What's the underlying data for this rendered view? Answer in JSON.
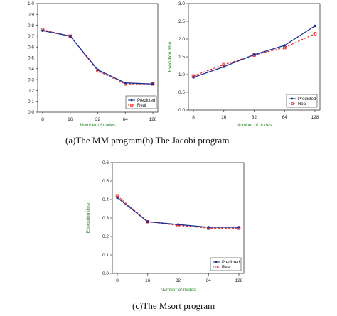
{
  "captions": {
    "ab": "(a)The MM program(b) The Jacobi program",
    "c": "(c)The Msort program"
  },
  "colors": {
    "predicted": "#1f2f8f",
    "real": "#e02020",
    "axis_title": "#2a8a2a",
    "frame": "#333333"
  },
  "chart_data": [
    {
      "id": "mm",
      "type": "line",
      "title": "",
      "xlabel": "Number of nodes",
      "ylabel": "",
      "x": [
        "8",
        "16",
        "32",
        "64",
        "128"
      ],
      "ylim": [
        0,
        1.0
      ],
      "yticks": [
        "0.0",
        "0.1",
        "0.2",
        "0.3",
        "0.4",
        "0.5",
        "0.6",
        "0.7",
        "0.8",
        "0.9",
        "1.0"
      ],
      "legend_position": "bottom-right",
      "grid": false,
      "series": [
        {
          "name": "Predicted",
          "values": [
            0.75,
            0.7,
            0.39,
            0.27,
            0.26
          ],
          "style": "solid",
          "marker": "circle"
        },
        {
          "name": "Real",
          "values": [
            0.76,
            0.7,
            0.38,
            0.26,
            0.26
          ],
          "style": "dashed",
          "marker": "square"
        }
      ]
    },
    {
      "id": "jacobi",
      "type": "line",
      "title": "",
      "xlabel": "Number of nodes",
      "ylabel": "Execution time",
      "x": [
        "8",
        "16",
        "32",
        "64",
        "128"
      ],
      "ylim": [
        0,
        3.0
      ],
      "yticks": [
        "0.0",
        "0.5",
        "1.0",
        "1.5",
        "2.0",
        "2.5",
        "3.0"
      ],
      "legend_position": "bottom-right",
      "grid": false,
      "series": [
        {
          "name": "Predicted",
          "values": [
            0.92,
            1.22,
            1.56,
            1.82,
            2.37
          ],
          "style": "solid",
          "marker": "circle"
        },
        {
          "name": "Real",
          "values": [
            0.96,
            1.28,
            1.55,
            1.76,
            2.15
          ],
          "style": "dashed",
          "marker": "square"
        }
      ]
    },
    {
      "id": "msort",
      "type": "line",
      "title": "",
      "xlabel": "Number of nodes",
      "ylabel": "Execution time",
      "x": [
        "8",
        "16",
        "32",
        "64",
        "128"
      ],
      "ylim": [
        0,
        0.6
      ],
      "yticks": [
        "0.0",
        "0.1",
        "0.2",
        "0.3",
        "0.4",
        "0.5",
        "0.6"
      ],
      "legend_position": "bottom-right",
      "grid": false,
      "series": [
        {
          "name": "Predicted",
          "values": [
            0.41,
            0.28,
            0.265,
            0.25,
            0.25
          ],
          "style": "solid",
          "marker": "circle"
        },
        {
          "name": "Real",
          "values": [
            0.42,
            0.28,
            0.26,
            0.245,
            0.245
          ],
          "style": "dashed",
          "marker": "square"
        }
      ]
    }
  ]
}
